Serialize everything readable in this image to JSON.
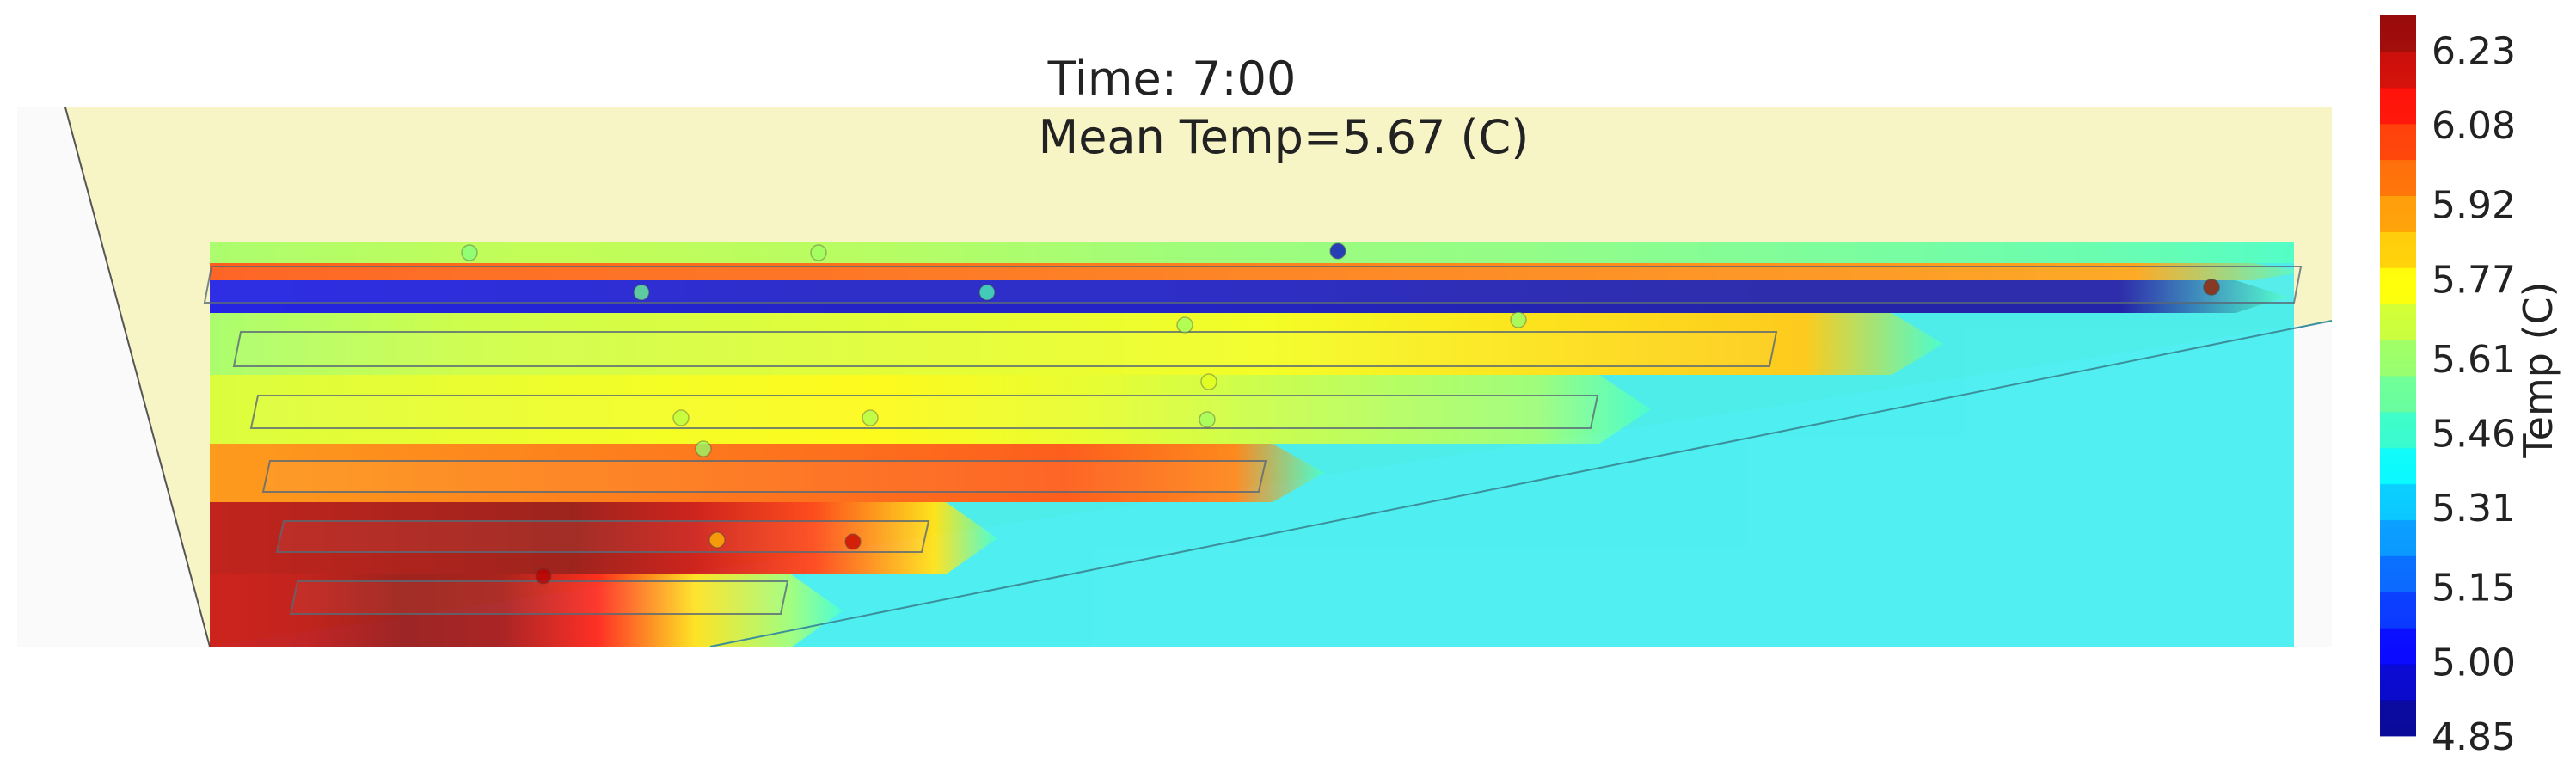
{
  "chart_data": {
    "type": "heatmap",
    "title_lines": [
      "Time: 7:00",
      "Mean Temp=5.67 (C)"
    ],
    "time": "7:00",
    "mean_temp_c": 5.67,
    "colorbar": {
      "label": "Temp (C)",
      "min": 4.85,
      "max": 6.3,
      "ticks": [
        6.23,
        6.08,
        5.92,
        5.77,
        5.61,
        5.46,
        5.31,
        5.15,
        5.0,
        4.85
      ],
      "tick_labels": [
        "6.23",
        "6.08",
        "5.92",
        "5.77",
        "5.61",
        "5.46",
        "5.31",
        "5.15",
        "5.00",
        "4.85"
      ],
      "colormap": "jet"
    },
    "rows": [
      {
        "name": "r1",
        "temps": [
          5.62,
          5.66,
          5.64,
          5.6,
          5.58,
          5.54,
          5.5
        ]
      },
      {
        "name": "r2",
        "temps": [
          6.02,
          6.0,
          5.99,
          5.97,
          5.95,
          5.93,
          5.9
        ]
      },
      {
        "name": "r3",
        "temps": [
          5.0,
          4.98,
          4.95,
          4.95,
          4.92,
          4.9,
          4.9
        ]
      },
      {
        "name": "r4",
        "temps": [
          5.62,
          5.68,
          5.7,
          5.72,
          5.74,
          5.8,
          5.84
        ]
      },
      {
        "name": "r5",
        "temps": [
          5.7,
          5.72,
          5.74,
          5.76,
          5.72,
          5.66,
          5.6
        ]
      },
      {
        "name": "r6",
        "temps": [
          5.92,
          5.94,
          5.96,
          5.98,
          6.0,
          6.02,
          5.95
        ]
      },
      {
        "name": "r7",
        "temps": [
          6.22,
          6.24,
          6.26,
          6.28,
          6.2,
          6.05,
          5.8
        ]
      },
      {
        "name": "r8",
        "temps": [
          6.2,
          6.22,
          6.28,
          6.26,
          6.1,
          5.8,
          5.6
        ]
      }
    ],
    "background_temp": 5.46,
    "sensors": [
      {
        "t": 5.58
      },
      {
        "t": 5.62
      },
      {
        "t": 4.95
      },
      {
        "t": 5.55
      },
      {
        "t": 5.5
      },
      {
        "t": 5.62
      },
      {
        "t": 5.6
      },
      {
        "t": 5.72
      },
      {
        "t": 5.66
      },
      {
        "t": 5.64
      },
      {
        "t": 5.62
      },
      {
        "t": 5.6
      },
      {
        "t": 5.58
      },
      {
        "t": 5.85
      },
      {
        "t": 6.2
      },
      {
        "t": 6.22
      },
      {
        "t": 6.28
      }
    ]
  }
}
